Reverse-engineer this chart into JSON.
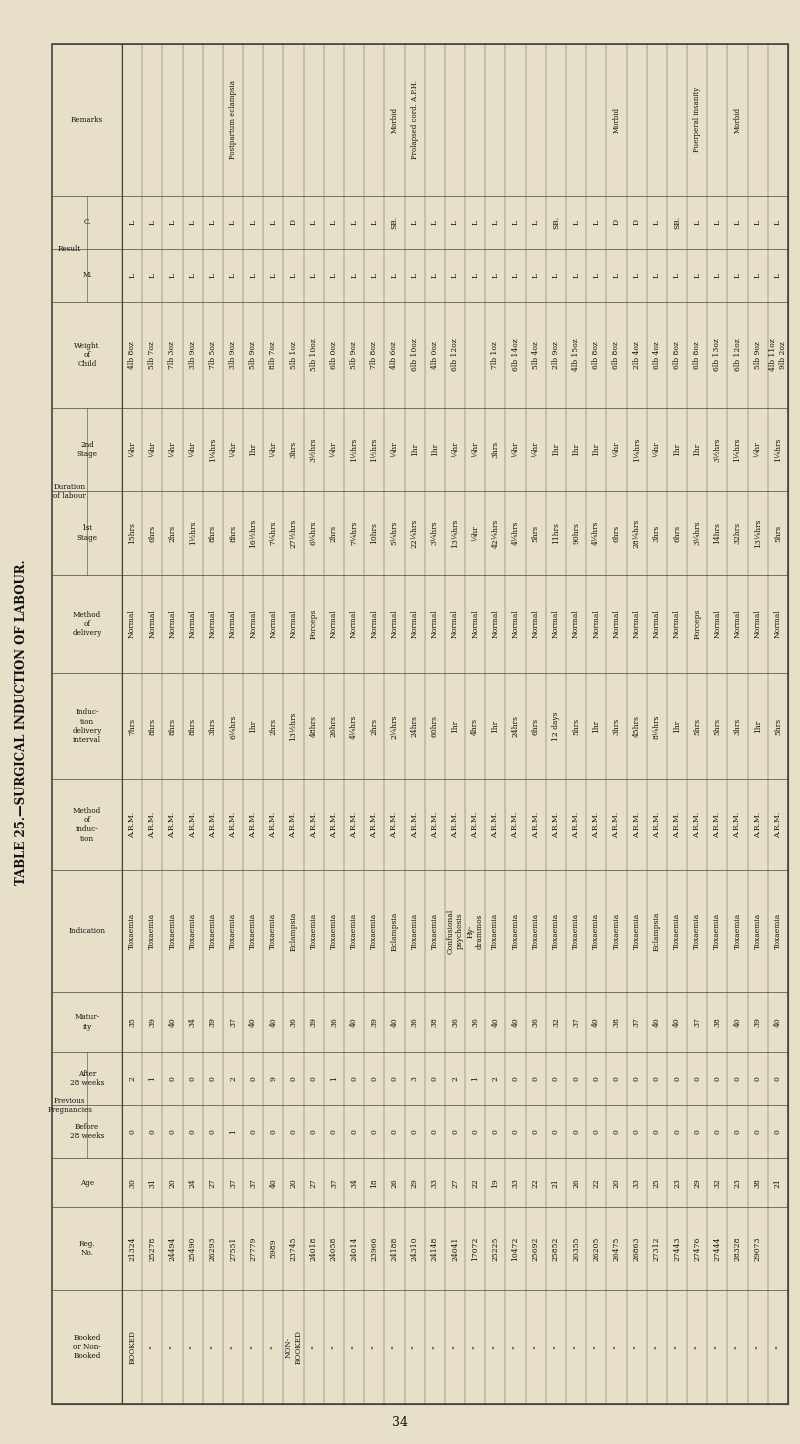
{
  "title": "TABLE 25.—SURGICAL INDUCTION OF LABOUR.",
  "page_number": "34",
  "bg": "#e8dfc8",
  "rows": [
    [
      "BOOKED",
      "21324",
      "30",
      "0",
      "2",
      "35",
      "Toxaemia",
      "A.R.M.",
      "7hrs",
      "Normal",
      "15hrs",
      "¼hr",
      "4lb 8oz",
      "L",
      "L",
      ""
    ],
    [
      "\"",
      "25278",
      "31",
      "0",
      "1",
      "39",
      "Toxaemia",
      "A.R.M.",
      "8hrs",
      "Normal",
      "6hrs",
      "¼hr",
      "5lb 7oz",
      "L",
      "L",
      ""
    ],
    [
      "\"",
      "24494",
      "20",
      "0",
      "0",
      "40",
      "Toxaemia",
      "A.R.M.",
      "8hrs",
      "Normal",
      "2hrs",
      "¼hr",
      "7lb 3oz",
      "L",
      "L",
      ""
    ],
    [
      "\"",
      "25490",
      "24",
      "0",
      "0",
      "34",
      "Toxaemia",
      "A.R.M.",
      "8hrs",
      "Normal",
      "1½hrs",
      "¼hr",
      "3lb 9oz",
      "L",
      "L",
      ""
    ],
    [
      "\"",
      "26293",
      "27",
      "0",
      "0",
      "39",
      "Toxaemia",
      "A.R.M.",
      "3hrs",
      "Normal",
      "8hrs",
      "1¼hrs",
      "7lb 5oz",
      "L",
      "L",
      ""
    ],
    [
      "\"",
      "27551",
      "37",
      "1",
      "2",
      "37",
      "Toxaemia",
      "A.R.M.",
      "6¼hrs",
      "Normal",
      "8hrs",
      "¼hr",
      "3lb 9oz",
      "L",
      "L",
      "Postpartum eclampsia"
    ],
    [
      "\"",
      "27779",
      "37",
      "0",
      "0",
      "40",
      "Toxaemia",
      "A.R.M.",
      "1hr",
      "Normal",
      "16½hrs",
      "1hr",
      "5lb 9oz",
      "L",
      "L",
      ""
    ],
    [
      "\"",
      "5989",
      "40",
      "0",
      "9",
      "40",
      "Toxaemia",
      "A.R.M.",
      "2hrs",
      "Normal",
      "7¼hrs",
      "¼hr",
      "8lb 7oz",
      "L",
      "L",
      ""
    ],
    [
      "NON-\nBOOKED",
      "23745",
      "20",
      "0",
      "0",
      "36",
      "Eclampsia",
      "A.R.M.",
      "13½hrs",
      "Normal",
      "27½hrs",
      "3hrs",
      "5lb 1oz",
      "L",
      "D",
      ""
    ],
    [
      "\"",
      "24018",
      "27",
      "0",
      "0",
      "39",
      "Toxaemia",
      "A.R.M.",
      "48hrs",
      "Forceps",
      "6¼hrs",
      "3½hrs",
      "5lb 10oz",
      "L",
      "L",
      ""
    ],
    [
      "\"",
      "24058",
      "37",
      "0",
      "1",
      "36",
      "Toxaemia",
      "A.R.M.",
      "26hrs",
      "Normal",
      "2hrs",
      "¼hr",
      "6lb 0oz",
      "L",
      "L",
      ""
    ],
    [
      "\"",
      "24014",
      "34",
      "0",
      "0",
      "40",
      "Toxaemia",
      "A.R.M.",
      "4¼hrs",
      "Normal",
      "7¼hrs",
      "1½hrs",
      "5lb 9oz",
      "L",
      "L",
      ""
    ],
    [
      "\"",
      "23966",
      "18",
      "0",
      "0",
      "39",
      "Toxaemia",
      "A.R.M.",
      "2hrs",
      "Normal",
      "10hrs",
      "1½hrs",
      "7lb 8oz",
      "L",
      "L",
      ""
    ],
    [
      "\"",
      "24188",
      "26",
      "0",
      "0",
      "40",
      "Eclampsia",
      "A.R.M.",
      "2¼hrs",
      "Normal",
      "5¼hrs",
      "¼hr",
      "4lb 6oz",
      "L",
      "SB.",
      "Morbid"
    ],
    [
      "\"",
      "24310",
      "29",
      "0",
      "3",
      "36",
      "Toxaemia",
      "A.R.M.",
      "24hrs",
      "Normal",
      "22¼hrs",
      "1hr",
      "6lb 10oz",
      "L",
      "L",
      "Prolapsed cord. A.P.H."
    ],
    [
      "\"",
      "24148",
      "33",
      "0",
      "0",
      "38",
      "Toxaemia",
      "A.R.M.",
      "60hrs",
      "Normal",
      "3¼hrs",
      "1hr",
      "4lb 0oz",
      "L",
      "L",
      ""
    ],
    [
      "\"",
      "24041",
      "27",
      "0",
      "2",
      "36",
      "Confusional\npsychosis",
      "A.R.M.",
      "1hr",
      "Normal",
      "13¼hrs",
      "¼hr",
      "6lb 12oz",
      "L",
      "L",
      ""
    ],
    [
      "\"",
      "17072",
      "22",
      "0",
      "1",
      "36",
      "Hy-\ndrammos",
      "A.R.M.",
      "4hrs",
      "Normal",
      "¼hr",
      "¼hr",
      "",
      "L",
      "L",
      ""
    ],
    [
      "\"",
      "25225",
      "19",
      "0",
      "2",
      "40",
      "Toxaemia",
      "A.R.M.",
      "1hr",
      "Normal",
      "42¼hrs",
      "3hrs",
      "7lb 1oz",
      "L",
      "L",
      ""
    ],
    [
      "\"",
      "10472",
      "33",
      "0",
      "0",
      "40",
      "Toxaemia",
      "A.R.M.",
      "24hrs",
      "Normal",
      "4¼hrs",
      "¼hr",
      "6lb 14oz",
      "L",
      "L",
      ""
    ],
    [
      "\"",
      "25692",
      "22",
      "0",
      "0",
      "36",
      "Toxaemia",
      "A.R.M.",
      "6hrs",
      "Normal",
      "5hrs",
      "¼hr",
      "5lb 4oz",
      "L",
      "L",
      ""
    ],
    [
      "\"",
      "25852",
      "21",
      "0",
      "0",
      "32",
      "Toxaemia",
      "A.R.M.",
      "12 days",
      "Normal",
      "11hrs",
      "1hr",
      "2lb 9oz",
      "L",
      "SB.",
      ""
    ],
    [
      "\"",
      "20355",
      "26",
      "0",
      "0",
      "37",
      "Toxaemia",
      "A.R.M.",
      "5hrs",
      "Normal",
      "90hrs",
      "1hr",
      "4lb 15oz",
      "L",
      "L",
      ""
    ],
    [
      "\"",
      "26205",
      "22",
      "0",
      "0",
      "40",
      "Toxaemia",
      "A.R.M.",
      "1hr",
      "Normal",
      "4¼hrs",
      "1hr",
      "6lb 8oz",
      "L",
      "L",
      ""
    ],
    [
      "\"",
      "26475",
      "20",
      "0",
      "0",
      "38",
      "Toxaemia",
      "A.R.M.",
      "3hrs",
      "Normal",
      "6hrs",
      "¼hr",
      "6lb 8oz",
      "L",
      "D",
      "Morbid"
    ],
    [
      "\"",
      "26863",
      "33",
      "0",
      "0",
      "37",
      "Toxaemia",
      "A.R.M.",
      "45hrs",
      "Normal",
      "28¼hrs",
      "1¼hrs",
      "2lb 4oz",
      "L",
      "D",
      ""
    ],
    [
      "\"",
      "27312",
      "25",
      "0",
      "0",
      "40",
      "Eclampsia",
      "A.R.M.",
      "8¼hrs",
      "Normal",
      "3hrs",
      "¼hr",
      "6lb 4oz",
      "L",
      "L",
      ""
    ],
    [
      "\"",
      "27443",
      "23",
      "0",
      "0",
      "40",
      "Toxaemia",
      "A.R.M.",
      "1hr",
      "Normal",
      "6hrs",
      "1hr",
      "6lb 8oz",
      "L",
      "SB.",
      ""
    ],
    [
      "\"",
      "27476",
      "29",
      "0",
      "0",
      "37",
      "Toxaemia",
      "A.R.M.",
      "5hrs",
      "Forceps",
      "3¼hrs",
      "1hr",
      "6lb 8oz",
      "L",
      "L",
      "Puerperal insanity"
    ],
    [
      "\"",
      "27444",
      "32",
      "0",
      "0",
      "38",
      "Toxaemia",
      "A.R.M.",
      "5hrs",
      "Normal",
      "14hrs",
      "3½hrs",
      "6lb 13oz",
      "L",
      "L",
      ""
    ],
    [
      "\"",
      "28328",
      "23",
      "0",
      "0",
      "40",
      "Toxaemia",
      "A.R.M.",
      "3hrs",
      "Normal",
      "32hrs",
      "1¼hrs",
      "6lb 12oz",
      "L",
      "L",
      "Morbid"
    ],
    [
      "\"",
      "29073",
      "38",
      "0",
      "0",
      "39",
      "Toxaemia",
      "A.R.M.",
      "1hr",
      "Normal",
      "13¼hrs",
      "¼hr",
      "5lb 9oz",
      "L",
      "L",
      ""
    ],
    [
      "\"",
      "",
      "21",
      "0",
      "0",
      "40",
      "Toxaemia",
      "A.R.M.",
      "5hrs",
      "Normal",
      "5hrs",
      "1¼hrs",
      "4lb 11oz\n9lb 2oz",
      "L",
      "L",
      ""
    ]
  ]
}
